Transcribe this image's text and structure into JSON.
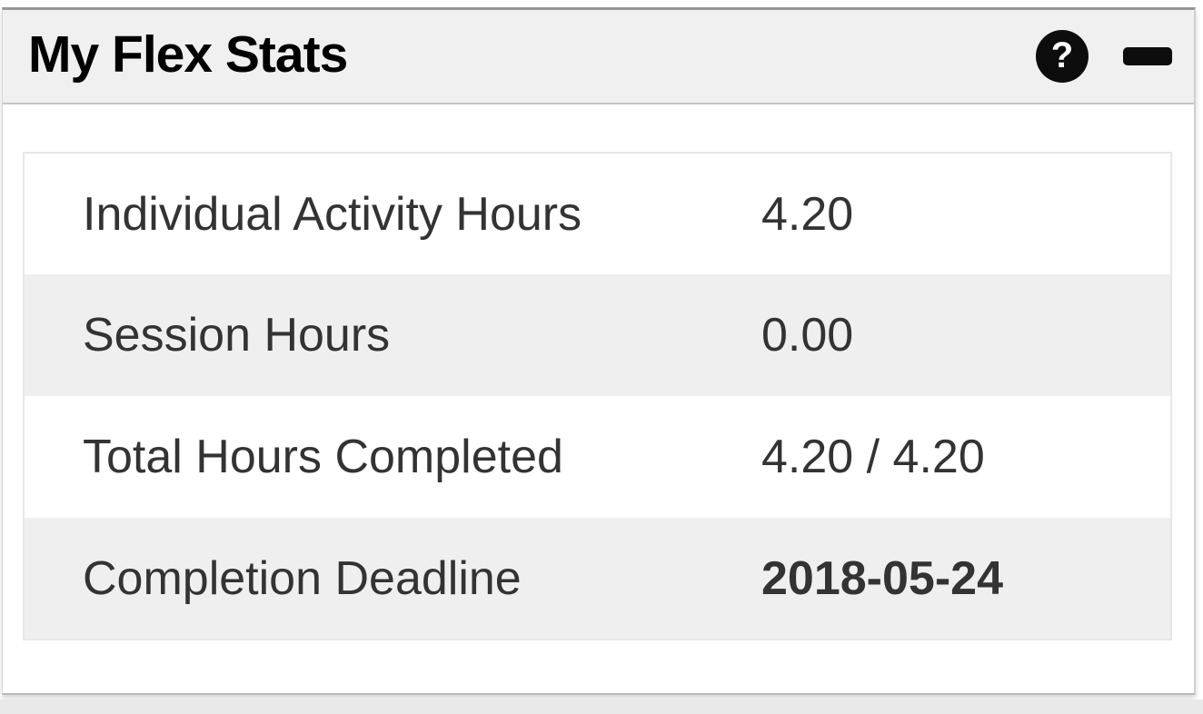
{
  "widget": {
    "title": "My Flex Stats",
    "header_icons": {
      "help_glyph": "?"
    }
  },
  "stats": {
    "rows": [
      {
        "label": "Individual Activity Hours",
        "value": "4.20"
      },
      {
        "label": "Session Hours",
        "value": "0.00"
      },
      {
        "label": "Total Hours Completed",
        "value": "4.20 / 4.20"
      },
      {
        "label": "Completion Deadline",
        "value": "2018-05-24"
      }
    ]
  },
  "colors": {
    "header_background": "#f0f0f0",
    "row_alternate_background": "#efefef",
    "table_border": "#e7e7e7",
    "icon_background": "#0d0d0d",
    "text": "#333333",
    "title_text": "#000000"
  }
}
